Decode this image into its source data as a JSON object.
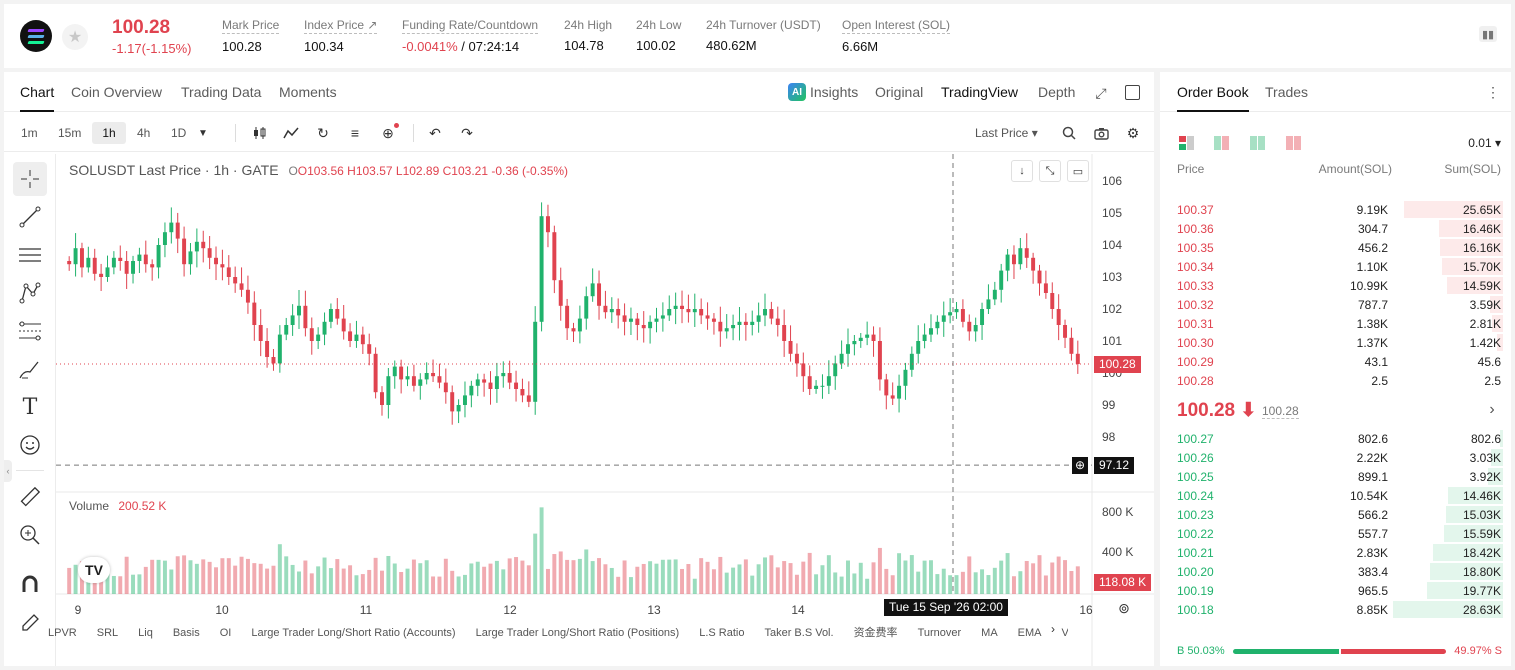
{
  "ticker": {
    "last_price": "100.28",
    "change": "-1.17(-1.15%)",
    "stats": [
      {
        "label": "Mark Price",
        "value": "100.28"
      },
      {
        "label": "Index Price ↗",
        "value": "100.34"
      },
      {
        "label": "Funding Rate/Countdown",
        "value_red": "-0.0041%",
        "value": " / 07:24:14"
      },
      {
        "label": "24h High",
        "value": "104.78"
      },
      {
        "label": "24h Low",
        "value": "100.02"
      },
      {
        "label": "24h Turnover (USDT)",
        "value": "480.62M"
      },
      {
        "label": "Open Interest (SOL)",
        "value": "6.66M"
      }
    ]
  },
  "chart_tabs": [
    "Chart",
    "Coin Overview",
    "Trading Data",
    "Moments"
  ],
  "view_tabs": {
    "insights": "Insights",
    "original": "Original",
    "tradingview": "TradingView",
    "depth": "Depth",
    "ai": "AI"
  },
  "intervals": [
    "1m",
    "15m",
    "1h",
    "4h",
    "1D"
  ],
  "price_type": "Last Price ▾",
  "legend": {
    "symbol": "SOLUSDT Last Price · 1h · GATE",
    "o": "O103.56",
    "h": "H103.57",
    "l": "L102.89",
    "c": "C103.21",
    "chg": "-0.36 (-0.35%)"
  },
  "volume_legend": {
    "label": "Volume",
    "value": "200.52 K"
  },
  "tags": {
    "last": "100.28",
    "cross": "97.12",
    "volume": "118.08 K",
    "time": "Tue 15 Sep '26   02:00"
  },
  "tv_logo": "TV",
  "indicators": [
    "LPVR",
    "SRL",
    "Liq",
    "Basis",
    "OI",
    "Large Trader Long/Short Ratio (Accounts)",
    "Large Trader Long/Short Ratio (Positions)",
    "L.S Ratio",
    "Taker B.S Vol.",
    "资金费率",
    "Turnover",
    "MA",
    "EMA",
    "Volu"
  ],
  "chart_data": {
    "type": "candlestick",
    "symbol": "SOLUSDT",
    "interval": "1h",
    "y_ticks": [
      106.0,
      105.0,
      104.0,
      103.0,
      102.0,
      101.0,
      100.0,
      99.0,
      98.0
    ],
    "ylim": [
      97.0,
      106.4
    ],
    "x_ticks": [
      "9",
      "10",
      "11",
      "12",
      "13",
      "14",
      "15",
      "16"
    ],
    "volume_ticks": [
      "800 K",
      "400 K"
    ],
    "last_price": 100.28,
    "crosshair_price": 97.12,
    "close_series": [
      103.4,
      103.9,
      103.3,
      103.6,
      103.1,
      103.0,
      103.3,
      103.6,
      103.5,
      103.1,
      103.5,
      103.7,
      103.4,
      103.3,
      104.0,
      104.4,
      104.7,
      104.2,
      103.4,
      103.8,
      104.1,
      103.9,
      103.6,
      103.4,
      103.3,
      103.0,
      102.8,
      102.6,
      102.2,
      101.5,
      101.0,
      100.5,
      100.3,
      101.2,
      101.5,
      101.8,
      102.1,
      101.4,
      101.0,
      101.2,
      101.6,
      102.0,
      101.7,
      101.3,
      101.0,
      101.2,
      100.9,
      100.6,
      99.4,
      99.0,
      99.9,
      100.2,
      99.8,
      99.9,
      99.6,
      99.8,
      100.0,
      99.9,
      99.7,
      99.4,
      98.8,
      99.0,
      99.3,
      99.6,
      99.8,
      99.7,
      99.5,
      99.9,
      100.0,
      99.7,
      99.5,
      99.3,
      99.1,
      101.6,
      104.9,
      104.4,
      102.9,
      102.1,
      101.4,
      101.3,
      101.7,
      102.4,
      102.8,
      102.1,
      101.9,
      102.0,
      101.8,
      101.6,
      101.7,
      101.5,
      101.4,
      101.6,
      101.7,
      101.8,
      102.0,
      102.1,
      102.0,
      101.9,
      102.0,
      101.8,
      101.7,
      101.6,
      101.3,
      101.4,
      101.5,
      101.6,
      101.5,
      101.6,
      101.8,
      102.0,
      101.7,
      101.5,
      101.0,
      100.6,
      100.3,
      99.9,
      99.5,
      99.6,
      99.6,
      99.9,
      100.3,
      100.6,
      100.9,
      101.0,
      101.1,
      101.2,
      101.0,
      99.8,
      99.3,
      99.2,
      99.6,
      100.1,
      100.6,
      101.0,
      101.2,
      101.4,
      101.6,
      101.8,
      101.9,
      102.0,
      101.6,
      101.3,
      101.5,
      102.0,
      102.3,
      102.6,
      103.2,
      103.7,
      103.4,
      103.9,
      103.6,
      103.2,
      102.8,
      102.5,
      102.0,
      101.5,
      101.1,
      100.6,
      100.28
    ],
    "volume_title": "Volume"
  },
  "orderbook": {
    "tabs": [
      "Order Book",
      "Trades"
    ],
    "precision": "0.01 ▾",
    "headers": [
      "Price",
      "Amount(SOL)",
      "Sum(SOL)"
    ],
    "asks": [
      {
        "price": "100.37",
        "amount": "9.19K",
        "sum": "25.65K",
        "amt_frac": 0,
        "sum_frac": 0.9
      },
      {
        "price": "100.36",
        "amount": "304.7",
        "sum": "16.46K",
        "amt_frac": 0,
        "sum_frac": 0.58
      },
      {
        "price": "100.35",
        "amount": "456.2",
        "sum": "16.16K",
        "amt_frac": 0.47,
        "sum_frac": 0.57,
        "amt_green": true
      },
      {
        "price": "100.34",
        "amount": "1.10K",
        "sum": "15.70K",
        "amt_frac": 0,
        "sum_frac": 0.55
      },
      {
        "price": "100.33",
        "amount": "10.99K",
        "sum": "14.59K",
        "amt_frac": 0,
        "sum_frac": 0.51
      },
      {
        "price": "100.32",
        "amount": "787.7",
        "sum": "3.59K",
        "amt_frac": 0,
        "sum_frac": 0.12
      },
      {
        "price": "100.31",
        "amount": "1.38K",
        "sum": "2.81K",
        "amt_frac": 0.47,
        "sum_frac": 0.1
      },
      {
        "price": "100.30",
        "amount": "1.37K",
        "sum": "1.42K",
        "amt_frac": 0.47,
        "sum_frac": 0.05,
        "amt_green": true
      },
      {
        "price": "100.29",
        "amount": "43.1",
        "sum": "45.6",
        "amt_frac": 0,
        "sum_frac": 0
      },
      {
        "price": "100.28",
        "amount": "2.5",
        "sum": "2.5",
        "amt_frac": 0,
        "sum_frac": 0
      }
    ],
    "mid_price": "100.28 ⬇",
    "mid_mark": "100.28",
    "bids": [
      {
        "price": "100.27",
        "amount": "802.6",
        "sum": "802.6",
        "amt_frac": 0,
        "sum_frac": 0.03
      },
      {
        "price": "100.26",
        "amount": "2.22K",
        "sum": "3.03K",
        "amt_frac": 0.47,
        "sum_frac": 0.11
      },
      {
        "price": "100.25",
        "amount": "899.1",
        "sum": "3.92K",
        "amt_frac": 0.47,
        "sum_frac": 0.14,
        "amt_red": true
      },
      {
        "price": "100.24",
        "amount": "10.54K",
        "sum": "14.46K",
        "amt_frac": 0,
        "sum_frac": 0.5
      },
      {
        "price": "100.23",
        "amount": "566.2",
        "sum": "15.03K",
        "amt_frac": 0,
        "sum_frac": 0.52
      },
      {
        "price": "100.22",
        "amount": "557.7",
        "sum": "15.59K",
        "amt_frac": 0.47,
        "sum_frac": 0.54
      },
      {
        "price": "100.21",
        "amount": "2.83K",
        "sum": "18.42K",
        "amt_frac": 0,
        "sum_frac": 0.64
      },
      {
        "price": "100.20",
        "amount": "383.4",
        "sum": "18.80K",
        "amt_frac": 0,
        "sum_frac": 0.66
      },
      {
        "price": "100.19",
        "amount": "965.5",
        "sum": "19.77K",
        "amt_frac": 0,
        "sum_frac": 0.69
      },
      {
        "price": "100.18",
        "amount": "8.85K",
        "sum": "28.63K",
        "amt_frac": 0,
        "sum_frac": 1.0
      }
    ],
    "buy_ratio": "B 50.03%",
    "sell_ratio": "49.97% S",
    "buy_frac": 0.5003
  },
  "colors": {
    "up": "#20b26c",
    "down": "#e0434f"
  }
}
